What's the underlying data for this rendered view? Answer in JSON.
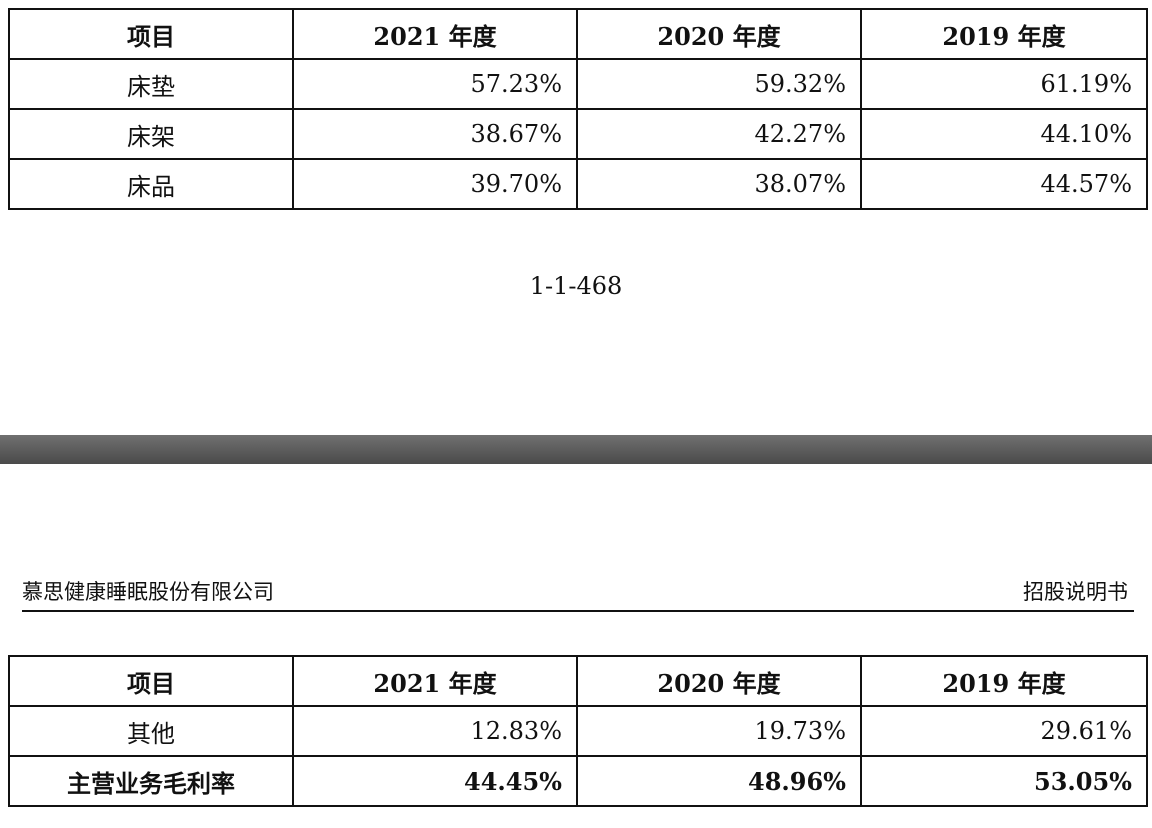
{
  "table_top": {
    "headers": [
      "项目",
      "2021 年度",
      "2020 年度",
      "2019 年度"
    ],
    "rows": [
      {
        "item": "床垫",
        "y2021": "57.23%",
        "y2020": "59.32%",
        "y2019": "61.19%"
      },
      {
        "item": "床架",
        "y2021": "38.67%",
        "y2020": "42.27%",
        "y2019": "44.10%"
      },
      {
        "item": "床品",
        "y2021": "39.70%",
        "y2020": "38.07%",
        "y2019": "44.57%"
      }
    ]
  },
  "page_number": "1-1-468",
  "doc_header": {
    "company": "慕思健康睡眠股份有限公司",
    "doc_type": "招股说明书"
  },
  "table_bottom": {
    "headers": [
      "项目",
      "2021 年度",
      "2020 年度",
      "2019 年度"
    ],
    "rows": [
      {
        "item": "其他",
        "y2021": "12.83%",
        "y2020": "19.73%",
        "y2019": "29.61%"
      },
      {
        "item": "主营业务毛利率",
        "y2021": "44.45%",
        "y2020": "48.96%",
        "y2019": "53.05%"
      }
    ]
  }
}
